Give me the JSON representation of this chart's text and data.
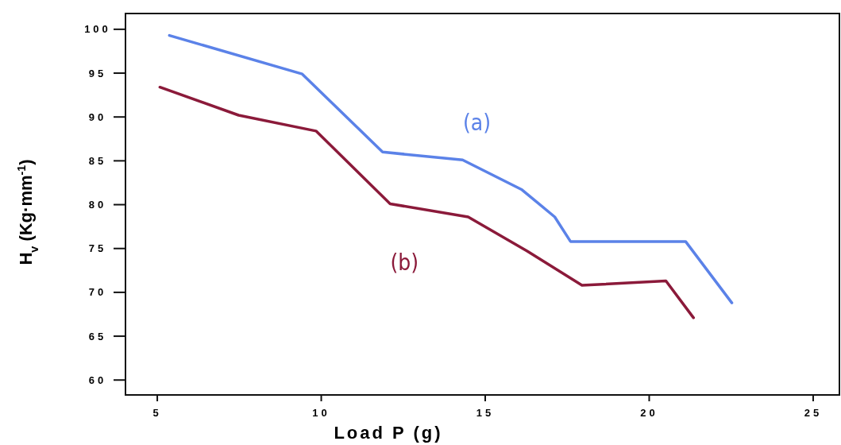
{
  "chart_data": {
    "type": "line",
    "xlabel": "Load P (g)",
    "ylabel": "H$_{v}$ (Kg·mm$^{-1}$)",
    "xlim": [
      4.03,
      25.8
    ],
    "xticks": [
      5,
      10,
      15,
      20,
      25
    ],
    "ylim": [
      58.3,
      101.8
    ],
    "yticks": [
      60,
      65,
      70,
      75,
      80,
      85,
      90,
      95,
      100
    ],
    "grid": false,
    "marker": "none",
    "line_style": "solid",
    "series": [
      {
        "name": "(a)",
        "color": "#5b82e8",
        "x": [
          5.37,
          9.42,
          11.87,
          14.31,
          16.12,
          17.12,
          17.6,
          21.11,
          22.52
        ],
        "values": [
          99.3,
          94.9,
          86.0,
          85.1,
          81.7,
          78.6,
          75.8,
          75.8,
          68.8
        ]
      },
      {
        "name": "(b)",
        "color": "#8b1a3a",
        "x": [
          5.08,
          7.48,
          9.84,
          12.1,
          14.48,
          16.28,
          17.95,
          20.51,
          21.35
        ],
        "values": [
          93.4,
          90.2,
          88.4,
          80.1,
          78.6,
          74.7,
          70.8,
          71.3,
          67.1
        ]
      }
    ]
  }
}
